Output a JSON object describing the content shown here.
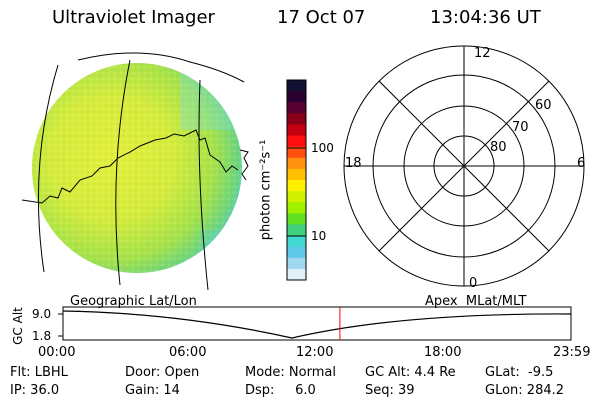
{
  "header": {
    "title": "Ultraviolet Imager",
    "date": "17 Oct 07",
    "time": "13:04:36 UT"
  },
  "colorbar": {
    "unit_label": "photon cm⁻²s⁻¹",
    "ticks": [
      "100",
      "10"
    ],
    "colors": [
      "#101030",
      "#2a0030",
      "#580030",
      "#8a0018",
      "#c40010",
      "#ff1010",
      "#ff5010",
      "#ff9010",
      "#ffc000",
      "#fff000",
      "#d0f000",
      "#a0f000",
      "#60e020",
      "#40d080",
      "#40d8d0",
      "#60c8e8",
      "#a0d8f0",
      "#e0f0f8"
    ]
  },
  "polar": {
    "labels": {
      "top": "12",
      "bottom": "0",
      "left": "18",
      "right": "6"
    },
    "lat_labels": [
      "60",
      "70",
      "80"
    ]
  },
  "timeline": {
    "left_title": "Geographic Lat/Lon",
    "right_title": "Apex  MLat/MLT",
    "axis_label": "GC Alt",
    "y_ticks": [
      "9.0",
      "1.8"
    ],
    "time_ticks": [
      "00:00",
      "06:00",
      "12:00",
      "18:00",
      "23:59"
    ],
    "current_fraction": 0.545,
    "marker_color": "#ff0000"
  },
  "status": {
    "flt": "Flt: LBHL",
    "door": "Door: Open",
    "mode": "Mode: Normal",
    "gcalt": "GC Alt: 4.4 Re",
    "glat": "GLat:  -9.5",
    "ip": "IP: 36.0",
    "gain": "Gain: 14",
    "dsp": "Dsp:     6.0",
    "seq": "Seq: 39",
    "glon": "GLon: 284.2"
  }
}
